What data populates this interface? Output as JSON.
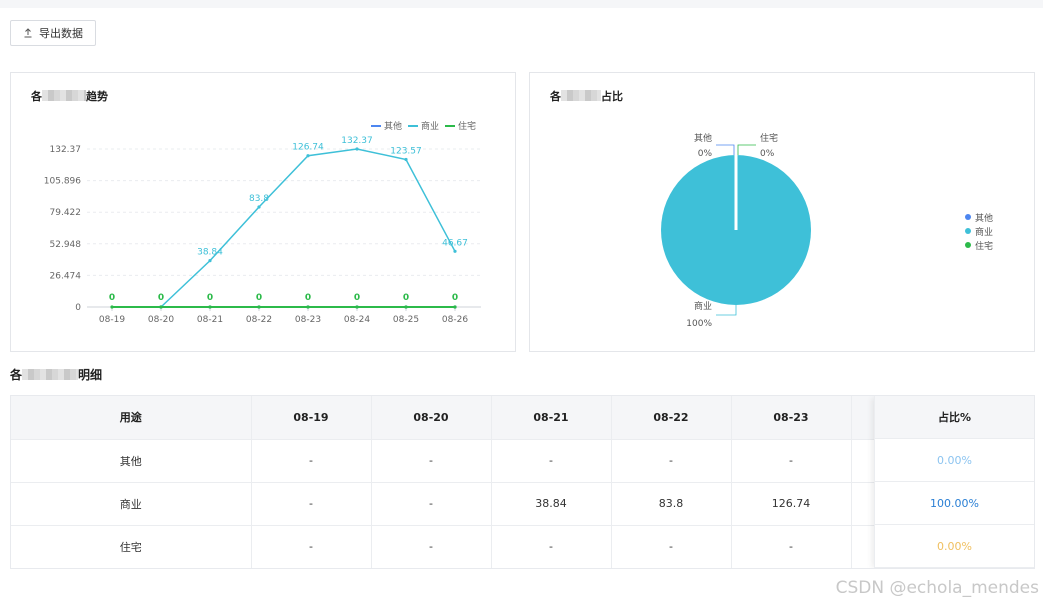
{
  "toolbar": {
    "export_label": "导出数据",
    "export_icon": "upload-icon"
  },
  "line_card": {
    "title_prefix": "各",
    "title_suffix": "趋势"
  },
  "pie_card": {
    "title_prefix": "各",
    "title_suffix": "占比"
  },
  "table_section": {
    "title_prefix": "各",
    "title_suffix": "明细"
  },
  "colors": {
    "other": "#4d86f0",
    "commercial": "#3ec0d8",
    "residential": "#2cba4a"
  },
  "chart_data": [
    {
      "type": "line",
      "categories": [
        "08-19",
        "08-20",
        "08-21",
        "08-22",
        "08-23",
        "08-24",
        "08-25",
        "08-26"
      ],
      "series": [
        {
          "name": "其他",
          "values": [
            null,
            0,
            0,
            0,
            0,
            0,
            0,
            0
          ]
        },
        {
          "name": "商业",
          "values": [
            null,
            0,
            38.84,
            83.8,
            126.74,
            132.37,
            123.57,
            46.67
          ]
        },
        {
          "name": "住宅",
          "values": [
            0,
            0,
            0,
            0,
            0,
            0,
            0,
            0
          ]
        }
      ],
      "point_labels": [
        "0",
        "0",
        "0",
        "0",
        "0",
        "0",
        "0",
        "0"
      ],
      "yticks": [
        "0",
        "26.474",
        "52.948",
        "79.422",
        "105.896",
        "132.37"
      ],
      "ylim": [
        0,
        132.37
      ],
      "legend_position": "top-right",
      "grid": true
    },
    {
      "type": "pie",
      "slices": [
        {
          "name": "其他",
          "value": 0,
          "percent": "0%"
        },
        {
          "name": "商业",
          "value": 100,
          "percent": "100%"
        },
        {
          "name": "住宅",
          "value": 0,
          "percent": "0%"
        }
      ],
      "legend_position": "right"
    }
  ],
  "table": {
    "headers": [
      "用途",
      "08-19",
      "08-20",
      "08-21",
      "08-22",
      "08-23"
    ],
    "ratio_header": "占比%",
    "rows": [
      {
        "cells": [
          "其他",
          "-",
          "-",
          "-",
          "-",
          "-"
        ],
        "ratio": "0.00%",
        "ratio_color": "#8cc4f0"
      },
      {
        "cells": [
          "商业",
          "-",
          "-",
          "38.84",
          "83.8",
          "126.74"
        ],
        "ratio": "100.00%",
        "ratio_color": "#2a7fd4"
      },
      {
        "cells": [
          "住宅",
          "-",
          "-",
          "-",
          "-",
          "-"
        ],
        "ratio": "0.00%",
        "ratio_color": "#f0c060"
      }
    ]
  },
  "watermark": "CSDN @echola_mendes"
}
